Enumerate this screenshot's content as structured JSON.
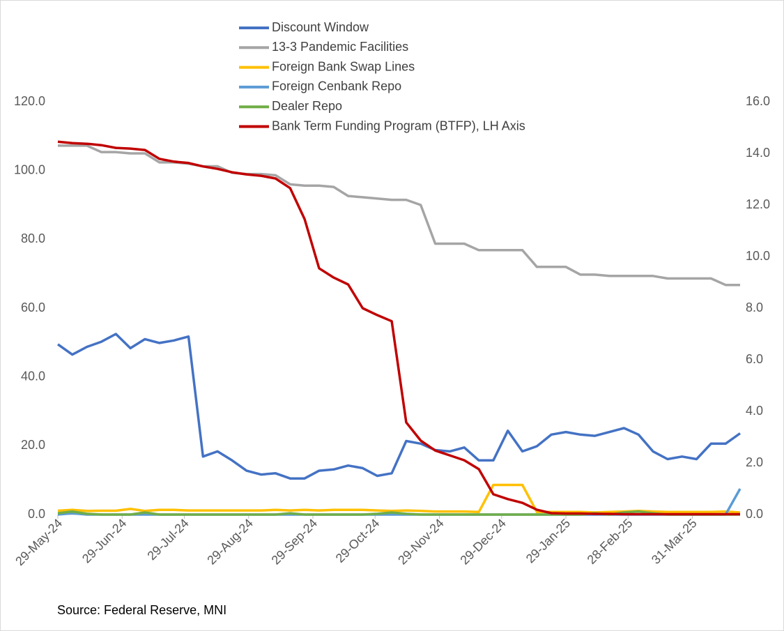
{
  "chart_data": {
    "type": "line",
    "source": "Source: Federal Reserve, MNI",
    "x": [
      "2024-05-29",
      "2024-06-05",
      "2024-06-12",
      "2024-06-19",
      "2024-06-26",
      "2024-07-03",
      "2024-07-10",
      "2024-07-17",
      "2024-07-24",
      "2024-07-31",
      "2024-08-07",
      "2024-08-14",
      "2024-08-21",
      "2024-08-28",
      "2024-09-04",
      "2024-09-11",
      "2024-09-18",
      "2024-09-25",
      "2024-10-02",
      "2024-10-09",
      "2024-10-16",
      "2024-10-23",
      "2024-10-30",
      "2024-11-06",
      "2024-11-13",
      "2024-11-20",
      "2024-11-27",
      "2024-12-04",
      "2024-12-11",
      "2024-12-18",
      "2024-12-25",
      "2025-01-01",
      "2025-01-08",
      "2025-01-15",
      "2025-01-22",
      "2025-01-29",
      "2025-02-05",
      "2025-02-12",
      "2025-02-19",
      "2025-02-26",
      "2025-03-05",
      "2025-03-12",
      "2025-03-19",
      "2025-03-26",
      "2025-04-02",
      "2025-04-09",
      "2025-04-16",
      "2025-04-23"
    ],
    "xlim": [
      "2024-05-29",
      "2025-04-23"
    ],
    "xticks": [
      {
        "value": "2024-05-29",
        "label": "29-May-24"
      },
      {
        "value": "2024-06-29",
        "label": "29-Jun-24"
      },
      {
        "value": "2024-07-29",
        "label": "29-Jul-24"
      },
      {
        "value": "2024-08-29",
        "label": "29-Aug-24"
      },
      {
        "value": "2024-09-29",
        "label": "29-Sep-24"
      },
      {
        "value": "2024-10-29",
        "label": "29-Oct-24"
      },
      {
        "value": "2024-11-29",
        "label": "29-Nov-24"
      },
      {
        "value": "2024-12-29",
        "label": "29-Dec-24"
      },
      {
        "value": "2025-01-29",
        "label": "29-Jan-25"
      },
      {
        "value": "2025-02-28",
        "label": "28-Feb-25"
      },
      {
        "value": "2025-03-31",
        "label": "31-Mar-25"
      }
    ],
    "ylim": [
      0,
      120
    ],
    "yticks": [
      {
        "value": 0,
        "label": "0.0"
      },
      {
        "value": 20,
        "label": "20.0"
      },
      {
        "value": 40,
        "label": "40.0"
      },
      {
        "value": 60,
        "label": "60.0"
      },
      {
        "value": 80,
        "label": "80.0"
      },
      {
        "value": 100,
        "label": "100.0"
      },
      {
        "value": 120,
        "label": "120.0"
      }
    ],
    "y2lim": [
      0,
      16
    ],
    "y2ticks": [
      {
        "value": 0,
        "label": "0.0"
      },
      {
        "value": 2,
        "label": "2.0"
      },
      {
        "value": 4,
        "label": "4.0"
      },
      {
        "value": 6,
        "label": "6.0"
      },
      {
        "value": 8,
        "label": "8.0"
      },
      {
        "value": 10,
        "label": "10.0"
      },
      {
        "value": 12,
        "label": "12.0"
      },
      {
        "value": 14,
        "label": "14.0"
      },
      {
        "value": 16,
        "label": "16.0"
      }
    ],
    "series": [
      {
        "name": "Discount Window",
        "color": "#4472c4",
        "axis": "y2",
        "values": [
          6.6,
          6.2,
          6.5,
          6.7,
          7.0,
          6.45,
          6.8,
          6.65,
          6.75,
          6.9,
          2.25,
          2.45,
          2.1,
          1.7,
          1.55,
          1.6,
          1.4,
          1.4,
          1.7,
          1.75,
          1.9,
          1.8,
          1.5,
          1.6,
          2.85,
          2.75,
          2.5,
          2.45,
          2.6,
          2.1,
          2.1,
          3.25,
          2.45,
          2.65,
          3.1,
          3.2,
          3.1,
          3.05,
          3.2,
          3.35,
          3.1,
          2.45,
          2.15,
          2.25,
          2.15,
          2.75,
          2.75,
          3.15
        ]
      },
      {
        "name": "13-3 Pandemic Facilities",
        "color": "#a5a5a5",
        "axis": "y2",
        "values": [
          14.3,
          14.3,
          14.3,
          14.05,
          14.05,
          14.0,
          14.0,
          13.65,
          13.65,
          13.6,
          13.5,
          13.5,
          13.25,
          13.2,
          13.2,
          13.15,
          12.8,
          12.75,
          12.75,
          12.7,
          12.35,
          12.3,
          12.25,
          12.2,
          12.2,
          12.0,
          10.5,
          10.5,
          10.5,
          10.25,
          10.25,
          10.25,
          10.25,
          9.6,
          9.6,
          9.6,
          9.3,
          9.3,
          9.25,
          9.25,
          9.25,
          9.25,
          9.15,
          9.15,
          9.15,
          9.15,
          8.9,
          8.9
        ]
      },
      {
        "name": "Foreign Bank Swap Lines",
        "color": "#ffc000",
        "axis": "y2",
        "values": [
          0.15,
          0.18,
          0.14,
          0.15,
          0.15,
          0.22,
          0.14,
          0.18,
          0.18,
          0.16,
          0.16,
          0.16,
          0.16,
          0.16,
          0.16,
          0.18,
          0.16,
          0.18,
          0.16,
          0.18,
          0.18,
          0.18,
          0.16,
          0.14,
          0.16,
          0.14,
          0.12,
          0.12,
          0.12,
          0.1,
          1.15,
          1.15,
          1.15,
          0.1,
          0.1,
          0.1,
          0.1,
          0.08,
          0.1,
          0.12,
          0.14,
          0.12,
          0.1,
          0.1,
          0.1,
          0.1,
          0.12,
          0.08
        ]
      },
      {
        "name": "Foreign Cenbank Repo",
        "color": "#5b9bd5",
        "axis": "y2",
        "values": [
          0,
          0.05,
          0,
          0,
          0,
          0,
          0,
          0,
          0,
          0,
          0,
          0,
          0,
          0,
          0,
          0,
          0,
          0,
          0,
          0,
          0,
          0,
          0,
          0,
          0,
          0,
          0,
          0,
          0,
          0,
          0,
          0,
          0,
          0,
          0,
          0,
          0,
          0,
          0,
          0,
          0,
          0,
          0,
          0,
          0,
          0,
          0,
          1.0
        ]
      },
      {
        "name": "Dealer Repo",
        "color": "#70ad47",
        "axis": "y2",
        "values": [
          0.05,
          0.12,
          0.03,
          0,
          0,
          0,
          0.08,
          0,
          0,
          0,
          0,
          0,
          0,
          0,
          0,
          0,
          0.05,
          0,
          0,
          0,
          0,
          0,
          0.03,
          0.08,
          0.03,
          0,
          0,
          0,
          0,
          0,
          0,
          0,
          0,
          0,
          0,
          0,
          0,
          0.05,
          0,
          0.08,
          0.12,
          0.05,
          0,
          0,
          0,
          0,
          0,
          0
        ]
      },
      {
        "name": "Bank Term Funding Program (BTFP), LH Axis",
        "color": "#c00000",
        "axis": "y",
        "values": [
          108.4,
          108,
          107.8,
          107.4,
          106.6,
          106.4,
          106,
          103.4,
          102.6,
          102.2,
          101.2,
          100.5,
          99.5,
          98.9,
          98.5,
          97.7,
          94.9,
          85.9,
          71.6,
          68.9,
          66.9,
          60,
          58,
          56.2,
          26.8,
          21.5,
          18.6,
          17.2,
          15.8,
          13.2,
          5.9,
          4.5,
          3.4,
          1.4,
          0.4,
          0.3,
          0.3,
          0.2,
          0.2,
          0.1,
          0.1,
          0.1,
          0.1,
          0.1,
          0.1,
          0.1,
          0.1,
          0.1
        ]
      }
    ]
  }
}
